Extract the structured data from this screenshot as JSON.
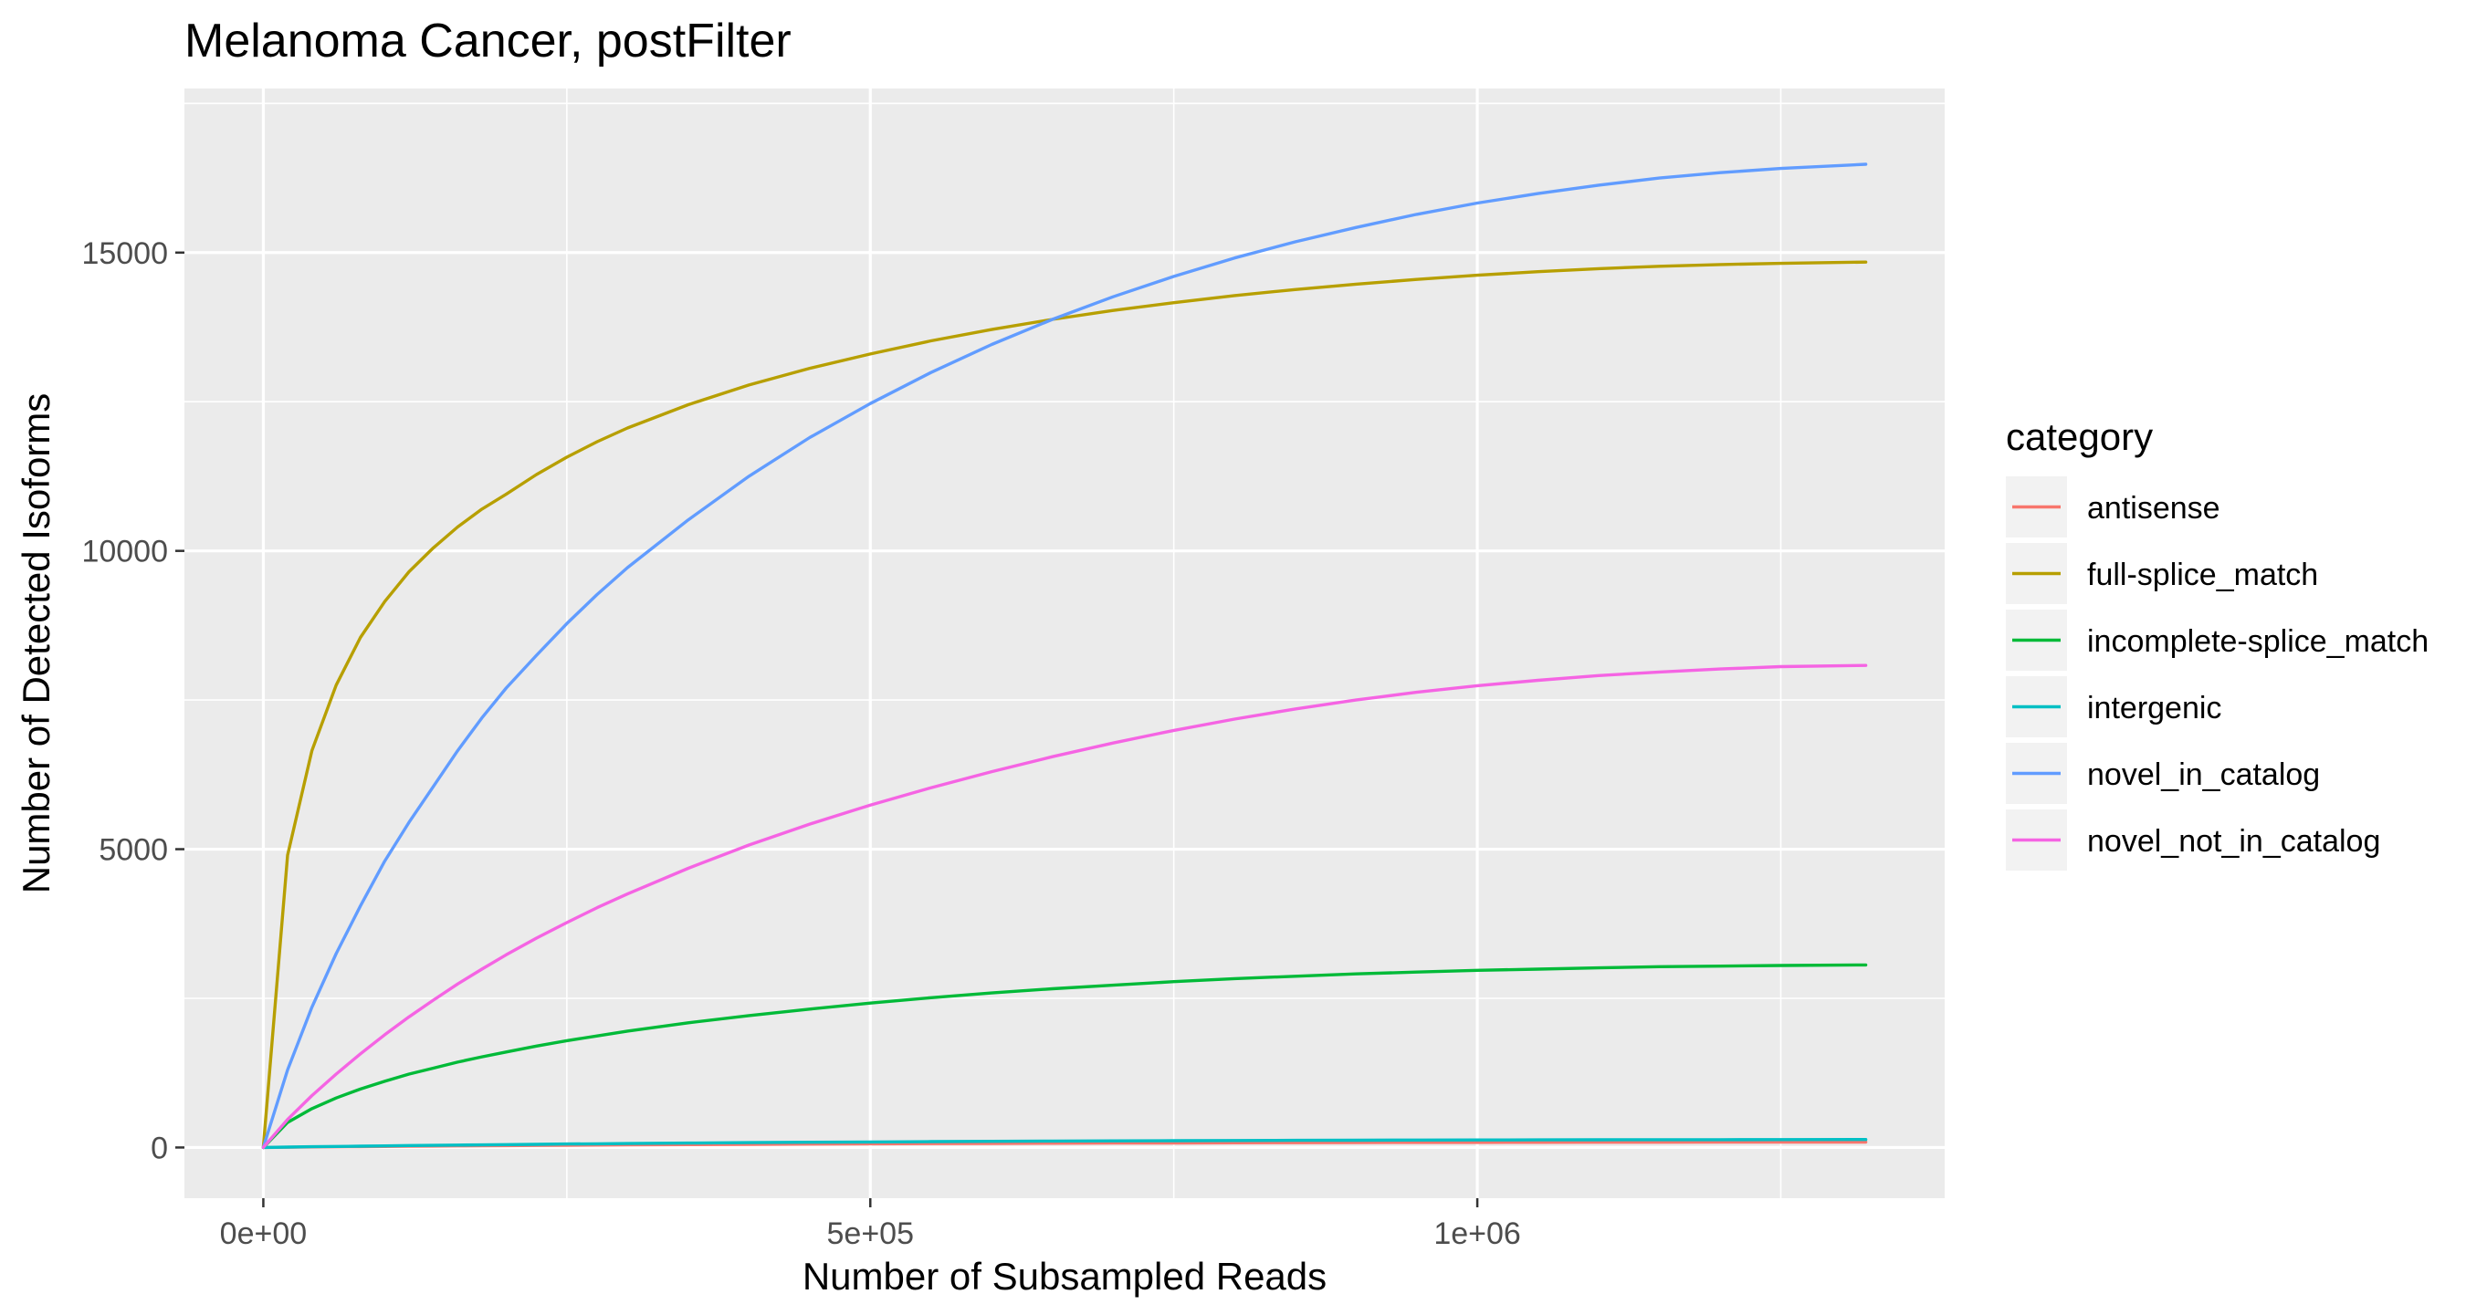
{
  "chart_data": {
    "type": "line",
    "title": "Melanoma Cancer, postFilter",
    "xlabel": "Number of Subsampled Reads",
    "ylabel": "Number of Detected Isoforms",
    "xlim": [
      -65000,
      1385000
    ],
    "ylim": [
      -850,
      17750
    ],
    "x_ticks": [
      0,
      500000,
      1000000
    ],
    "x_tick_labels": [
      "0e+00",
      "5e+05",
      "1e+06"
    ],
    "y_ticks": [
      0,
      5000,
      10000,
      15000
    ],
    "y_tick_labels": [
      "0",
      "5000",
      "10000",
      "15000"
    ],
    "grid": true,
    "legend": {
      "title": "category",
      "position": "right"
    },
    "x": [
      0,
      20000,
      40000,
      60000,
      80000,
      100000,
      120000,
      140000,
      160000,
      180000,
      200000,
      225000,
      250000,
      275000,
      300000,
      350000,
      400000,
      450000,
      500000,
      550000,
      600000,
      650000,
      700000,
      750000,
      800000,
      850000,
      900000,
      950000,
      1000000,
      1050000,
      1100000,
      1150000,
      1200000,
      1250000,
      1320000
    ],
    "series": [
      {
        "name": "antisense",
        "color": "#F8766D",
        "values": [
          0,
          4,
          8,
          11,
          14,
          17,
          20,
          23,
          26,
          28,
          31,
          34,
          37,
          40,
          43,
          48,
          53,
          57,
          61,
          65,
          68,
          71,
          74,
          76,
          78,
          80,
          82,
          84,
          85,
          86,
          87,
          88,
          89,
          90,
          90
        ]
      },
      {
        "name": "full-splice_match",
        "color": "#B79F00",
        "values": [
          0,
          4900,
          6650,
          7750,
          8550,
          9150,
          9650,
          10050,
          10400,
          10700,
          10950,
          11280,
          11570,
          11830,
          12060,
          12450,
          12780,
          13060,
          13300,
          13520,
          13710,
          13880,
          14030,
          14160,
          14280,
          14380,
          14470,
          14550,
          14620,
          14680,
          14730,
          14770,
          14800,
          14820,
          14840
        ]
      },
      {
        "name": "incomplete-splice_match",
        "color": "#00BA38",
        "values": [
          0,
          420,
          650,
          830,
          980,
          1110,
          1230,
          1330,
          1430,
          1520,
          1600,
          1700,
          1790,
          1870,
          1950,
          2090,
          2210,
          2320,
          2420,
          2510,
          2590,
          2660,
          2720,
          2780,
          2830,
          2870,
          2910,
          2940,
          2970,
          2990,
          3010,
          3030,
          3040,
          3050,
          3060
        ]
      },
      {
        "name": "intergenic",
        "color": "#00BFC4",
        "values": [
          0,
          6,
          12,
          17,
          22,
          27,
          32,
          36,
          40,
          44,
          48,
          53,
          58,
          62,
          66,
          74,
          81,
          87,
          93,
          98,
          103,
          107,
          111,
          114,
          117,
          120,
          122,
          124,
          126,
          128,
          129,
          130,
          131,
          132,
          133
        ]
      },
      {
        "name": "novel_in_catalog",
        "color": "#619CFF",
        "values": [
          0,
          1300,
          2350,
          3250,
          4050,
          4800,
          5450,
          6050,
          6650,
          7200,
          7700,
          8250,
          8780,
          9270,
          9720,
          10520,
          11250,
          11900,
          12470,
          12990,
          13460,
          13880,
          14260,
          14600,
          14910,
          15180,
          15420,
          15640,
          15830,
          15990,
          16130,
          16250,
          16340,
          16410,
          16480
        ]
      },
      {
        "name": "novel_not_in_catalog",
        "color": "#F564E3",
        "values": [
          0,
          470,
          870,
          1230,
          1570,
          1890,
          2190,
          2470,
          2740,
          2990,
          3230,
          3510,
          3770,
          4020,
          4250,
          4680,
          5070,
          5420,
          5740,
          6030,
          6300,
          6550,
          6780,
          6990,
          7180,
          7350,
          7500,
          7630,
          7740,
          7830,
          7910,
          7970,
          8020,
          8060,
          8080
        ]
      }
    ]
  }
}
